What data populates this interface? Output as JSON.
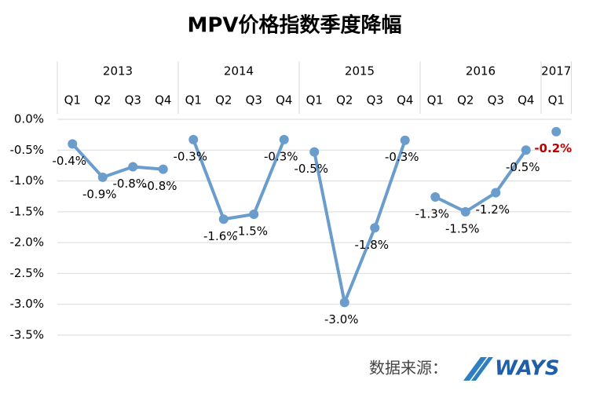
{
  "chart_data": {
    "type": "line",
    "title": "MPV价格指数季度降幅",
    "groups": [
      {
        "name": "2013",
        "categories": [
          "Q1",
          "Q2",
          "Q3",
          "Q4"
        ],
        "values": [
          -0.4,
          -0.94,
          -0.77,
          -0.81
        ],
        "value_labels": [
          "-0.4%",
          "-0.9%",
          "-0.8%",
          "-0.8%"
        ],
        "label_color": "#000000"
      },
      {
        "name": "2014",
        "categories": [
          "Q1",
          "Q2",
          "Q3",
          "Q4"
        ],
        "values": [
          -0.33,
          -1.62,
          -1.54,
          -0.33
        ],
        "value_labels": [
          "-0.3%",
          "-1.6%",
          "-1.5%",
          "-0.3%"
        ],
        "label_color": "#000000"
      },
      {
        "name": "2015",
        "categories": [
          "Q1",
          "Q2",
          "Q3",
          "Q4"
        ],
        "values": [
          -0.53,
          -2.97,
          -1.76,
          -0.34
        ],
        "value_labels": [
          "-0.5%",
          "-3.0%",
          "-1.8%",
          "-0.3%"
        ],
        "label_color": "#000000"
      },
      {
        "name": "2016",
        "categories": [
          "Q1",
          "Q2",
          "Q3",
          "Q4"
        ],
        "values": [
          -1.26,
          -1.5,
          -1.19,
          -0.5
        ],
        "value_labels": [
          "-1.3%",
          "-1.5%",
          "-1.2%",
          "-0.5%"
        ],
        "label_color": "#000000"
      },
      {
        "name": "2017",
        "categories": [
          "Q1"
        ],
        "values": [
          -0.2
        ],
        "value_labels": [
          "-0.2%"
        ],
        "label_color": "#c00000"
      }
    ],
    "color": "#6a9ccc",
    "ylim": [
      -3.5,
      0
    ],
    "yticks": [
      {
        "value": 0,
        "label": "0.0%"
      },
      {
        "value": -0.5,
        "label": "-0.5%"
      },
      {
        "value": -1,
        "label": "-1.0%"
      },
      {
        "value": -1.5,
        "label": "-1.5%"
      },
      {
        "value": -2,
        "label": "-2.0%"
      },
      {
        "value": -2.5,
        "label": "-2.5%"
      },
      {
        "value": -3,
        "label": "-3.0%"
      },
      {
        "value": -3.5,
        "label": "-3.5%"
      }
    ],
    "grid": true,
    "source": "数据来源：",
    "logo": "WAYS"
  }
}
